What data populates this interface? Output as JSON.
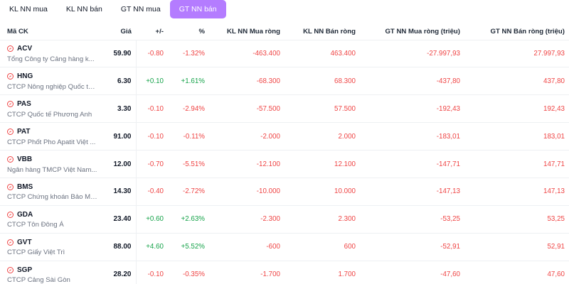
{
  "tabs": [
    {
      "label": "KL NN mua",
      "active": false
    },
    {
      "label": "KL NN bán",
      "active": false
    },
    {
      "label": "GT NN mua",
      "active": false
    },
    {
      "label": "GT NN bán",
      "active": true
    }
  ],
  "table": {
    "headers": {
      "code": "Mã CK",
      "price": "Giá",
      "change": "+/-",
      "percent": "%",
      "kl_buy": "KL NN Mua ròng",
      "kl_sell": "KL NN Bán ròng",
      "gt_buy": "GT NN Mua ròng (triệu)",
      "gt_sell": "GT NN Bán ròng (triệu)"
    },
    "rows": [
      {
        "code": "ACV",
        "name": "Tổng Công ty Cảng hàng k...",
        "price": "59.90",
        "change": "-0.80",
        "percent": "-1.32%",
        "kl_buy": "-463.400",
        "kl_sell": "463.400",
        "gt_buy": "-27.997,93",
        "gt_sell": "27.997,93"
      },
      {
        "code": "HNG",
        "name": "CTCP Nông nghiệp Quốc tế...",
        "price": "6.30",
        "change": "+0.10",
        "percent": "+1.61%",
        "kl_buy": "-68.300",
        "kl_sell": "68.300",
        "gt_buy": "-437,80",
        "gt_sell": "437,80"
      },
      {
        "code": "PAS",
        "name": "CTCP Quốc tế Phương Anh",
        "price": "3.30",
        "change": "-0.10",
        "percent": "-2.94%",
        "kl_buy": "-57.500",
        "kl_sell": "57.500",
        "gt_buy": "-192,43",
        "gt_sell": "192,43"
      },
      {
        "code": "PAT",
        "name": "CTCP Phốt Pho Apatit Việt ...",
        "price": "91.00",
        "change": "-0.10",
        "percent": "-0.11%",
        "kl_buy": "-2.000",
        "kl_sell": "2.000",
        "gt_buy": "-183,01",
        "gt_sell": "183,01"
      },
      {
        "code": "VBB",
        "name": "Ngân hàng TMCP Việt Nam...",
        "price": "12.00",
        "change": "-0.70",
        "percent": "-5.51%",
        "kl_buy": "-12.100",
        "kl_sell": "12.100",
        "gt_buy": "-147,71",
        "gt_sell": "147,71"
      },
      {
        "code": "BMS",
        "name": "CTCP Chứng khoán Bảo Mi...",
        "price": "14.30",
        "change": "-0.40",
        "percent": "-2.72%",
        "kl_buy": "-10.000",
        "kl_sell": "10.000",
        "gt_buy": "-147,13",
        "gt_sell": "147,13"
      },
      {
        "code": "GDA",
        "name": "CTCP Tôn Đông Á",
        "price": "23.40",
        "change": "+0.60",
        "percent": "+2.63%",
        "kl_buy": "-2.300",
        "kl_sell": "2.300",
        "gt_buy": "-53,25",
        "gt_sell": "53,25"
      },
      {
        "code": "GVT",
        "name": "CTCP Giấy Việt Trì",
        "price": "88.00",
        "change": "+4.60",
        "percent": "+5.52%",
        "kl_buy": "-600",
        "kl_sell": "600",
        "gt_buy": "-52,91",
        "gt_sell": "52,91"
      },
      {
        "code": "SGP",
        "name": "CTCP Cảng Sài Gòn",
        "price": "28.20",
        "change": "-0.10",
        "percent": "-0.35%",
        "kl_buy": "-1.700",
        "kl_sell": "1.700",
        "gt_buy": "-47,60",
        "gt_sell": "47,60"
      }
    ]
  },
  "icons": {
    "row_icon": "watchlist-icon"
  },
  "colors": {
    "accent": "#b47cff",
    "negative": "#ef4444",
    "positive": "#16a34a"
  }
}
